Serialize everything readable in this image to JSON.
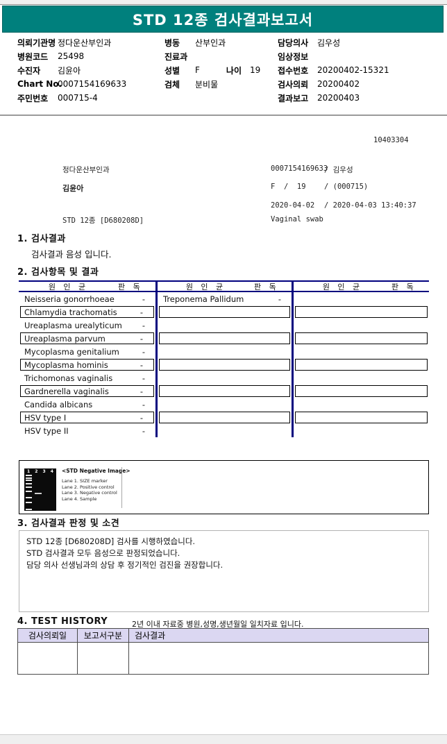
{
  "title_bar": {
    "title": "STD 12종 검사결과보고서"
  },
  "patient_info": {
    "columns": [
      {
        "fields": [
          {
            "label": "의뢰기관명",
            "value": "정다운산부인과"
          },
          {
            "label": "병원코드",
            "value": "25498"
          },
          {
            "label": "수진자",
            "value": "김윤아"
          },
          {
            "label": "Chart No.",
            "value": "0007154169633"
          },
          {
            "label": "주민번호",
            "value": "000715-4"
          }
        ]
      },
      {
        "fields": [
          {
            "label": "병동",
            "value": "산부인과"
          },
          {
            "label": "진료과",
            "value": ""
          },
          {
            "label": "성별",
            "value": "F",
            "extra_label": "나이",
            "extra_value": "19"
          },
          {
            "label": "검체",
            "value": "분비물"
          }
        ]
      },
      {
        "fields": [
          {
            "label": "담당의사",
            "value": "김우성"
          },
          {
            "label": "임상정보",
            "value": ""
          },
          {
            "label": "접수번호",
            "value": "20200402-15321"
          },
          {
            "label": "검사의뢰",
            "value": "20200402"
          },
          {
            "label": "결과보고",
            "value": "20200403"
          }
        ]
      }
    ]
  },
  "report_meta": {
    "serial": "10403304",
    "rows": [
      {
        "left": "정다운산부인과",
        "left_bold": false,
        "mid": "0007154169633",
        "right": "/ 김우성"
      },
      {
        "left": "김윤아",
        "left_bold": true,
        "mid": "F  /  19",
        "right": "/ (000715)"
      },
      {
        "left": "",
        "left_bold": false,
        "mid": "2020-04-02",
        "right": "/ 2020-04-03 13:40:37"
      },
      {
        "left": "STD 12종 [D680208D]",
        "left_bold": false,
        "mid": "Vaginal swab",
        "right": ""
      }
    ]
  },
  "section1": {
    "heading": "1. 검사결과",
    "result_text": "검사결과 음성 입니다."
  },
  "section2": {
    "heading": "2. 검사항목 및 결과",
    "organism_header": "원 인 균",
    "reading_header": "판 독",
    "groups": [
      {
        "rows": [
          {
            "name": "Neisseria gonorrhoeae",
            "reading": "-",
            "boxed": false
          },
          {
            "name": "Chlamydia trachomatis",
            "reading": "-",
            "boxed": true
          },
          {
            "name": "Ureaplasma urealyticum",
            "reading": "-",
            "boxed": false
          },
          {
            "name": "Ureaplasma parvum",
            "reading": "-",
            "boxed": true
          },
          {
            "name": "Mycoplasma genitalium",
            "reading": "-",
            "boxed": false
          },
          {
            "name": "Mycoplasma hominis",
            "reading": "-",
            "boxed": true
          },
          {
            "name": "Trichomonas vaginalis",
            "reading": "-",
            "boxed": false
          },
          {
            "name": "Gardnerella vaginalis",
            "reading": "-",
            "boxed": true
          },
          {
            "name": "Candida albicans",
            "reading": "-",
            "boxed": false
          },
          {
            "name": "HSV type I",
            "reading": "-",
            "boxed": true
          },
          {
            "name": "HSV type II",
            "reading": "-",
            "boxed": false
          }
        ]
      },
      {
        "rows": [
          {
            "name": "Treponema Pallidum",
            "reading": "-",
            "boxed": false
          },
          {
            "name": "",
            "reading": "",
            "boxed": true
          },
          {
            "name": "",
            "reading": "",
            "boxed": false
          },
          {
            "name": "",
            "reading": "",
            "boxed": true
          },
          {
            "name": "",
            "reading": "",
            "boxed": false
          },
          {
            "name": "",
            "reading": "",
            "boxed": true
          },
          {
            "name": "",
            "reading": "",
            "boxed": false
          },
          {
            "name": "",
            "reading": "",
            "boxed": true
          },
          {
            "name": "",
            "reading": "",
            "boxed": false
          },
          {
            "name": "",
            "reading": "",
            "boxed": true
          },
          {
            "name": "",
            "reading": "",
            "boxed": false
          }
        ]
      },
      {
        "rows": [
          {
            "name": "",
            "reading": "",
            "boxed": false
          },
          {
            "name": "",
            "reading": "",
            "boxed": true
          },
          {
            "name": "",
            "reading": "",
            "boxed": false
          },
          {
            "name": "",
            "reading": "",
            "boxed": true
          },
          {
            "name": "",
            "reading": "",
            "boxed": false
          },
          {
            "name": "",
            "reading": "",
            "boxed": true
          },
          {
            "name": "",
            "reading": "",
            "boxed": false
          },
          {
            "name": "",
            "reading": "",
            "boxed": true
          },
          {
            "name": "",
            "reading": "",
            "boxed": false
          },
          {
            "name": "",
            "reading": "",
            "boxed": true
          },
          {
            "name": "",
            "reading": "",
            "boxed": false
          }
        ]
      }
    ]
  },
  "gel_panel": {
    "image_title": "<STD Negative Image>",
    "lane_numbers": [
      "1",
      "2",
      "3",
      "4"
    ],
    "lane_legend": [
      "Lane 1. SIZE marker",
      "Lane 2. Positive control",
      "Lane 3. Negative control",
      "Lane 4. Sample"
    ],
    "marker_bands_pct": [
      14,
      21,
      27,
      35,
      43,
      52,
      68,
      78,
      95
    ],
    "sample_band_pct": 57
  },
  "section3": {
    "heading": "3. 검사결과 판정 및 소견",
    "comment_lines": [
      "STD 12종 [D680208D] 검사를 시행하였습니다.",
      "STD 검사결과 모두 음성으로 판정되었습니다.",
      "담당 의사 선생님과의 상담 후 정기적인 검진을 권장합니다."
    ]
  },
  "section4": {
    "heading": "4. TEST HISTORY",
    "note": "2년 이내 자료중 병원,성명,생년월일 일치자료 입니다.",
    "columns": [
      "검사의뢰일",
      "보고서구분",
      "검사결과"
    ]
  },
  "colors": {
    "teal": "#00807D",
    "navy": "#00007E",
    "lavender": "#DBD7F2"
  }
}
